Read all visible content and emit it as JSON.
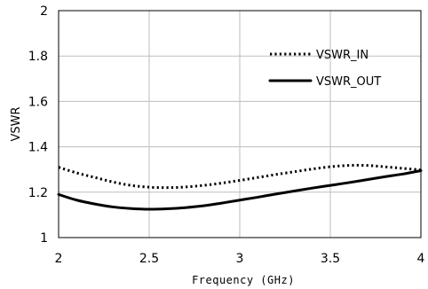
{
  "chart_data": {
    "type": "line",
    "title": "",
    "xlabel": "Frequency (GHz)",
    "ylabel": "VSWR",
    "xlim": [
      2,
      4
    ],
    "ylim": [
      1,
      2
    ],
    "xticks": [
      "2",
      "2.5",
      "3",
      "3.5",
      "4"
    ],
    "yticks": [
      "1",
      "1.2",
      "1.4",
      "1.6",
      "1.8",
      "2"
    ],
    "grid": true,
    "legend_position": "right",
    "series": [
      {
        "name": "VSWR_IN",
        "style": "dotted",
        "color": "#000000",
        "x": [
          2.0,
          2.1,
          2.2,
          2.3,
          2.4,
          2.5,
          2.6,
          2.7,
          2.8,
          2.9,
          3.0,
          3.1,
          3.2,
          3.3,
          3.4,
          3.5,
          3.6,
          3.7,
          3.8,
          3.9,
          4.0
        ],
        "y": [
          1.31,
          1.285,
          1.265,
          1.245,
          1.23,
          1.222,
          1.22,
          1.223,
          1.23,
          1.24,
          1.252,
          1.265,
          1.278,
          1.29,
          1.302,
          1.312,
          1.318,
          1.318,
          1.312,
          1.305,
          1.298
        ]
      },
      {
        "name": "VSWR_OUT",
        "style": "solid",
        "color": "#000000",
        "x": [
          2.0,
          2.1,
          2.2,
          2.3,
          2.4,
          2.5,
          2.6,
          2.7,
          2.8,
          2.9,
          3.0,
          3.1,
          3.2,
          3.3,
          3.4,
          3.5,
          3.6,
          3.7,
          3.8,
          3.9,
          4.0
        ],
        "y": [
          1.19,
          1.165,
          1.148,
          1.135,
          1.128,
          1.125,
          1.127,
          1.132,
          1.14,
          1.152,
          1.165,
          1.178,
          1.192,
          1.205,
          1.218,
          1.23,
          1.242,
          1.255,
          1.268,
          1.28,
          1.295
        ]
      }
    ]
  }
}
